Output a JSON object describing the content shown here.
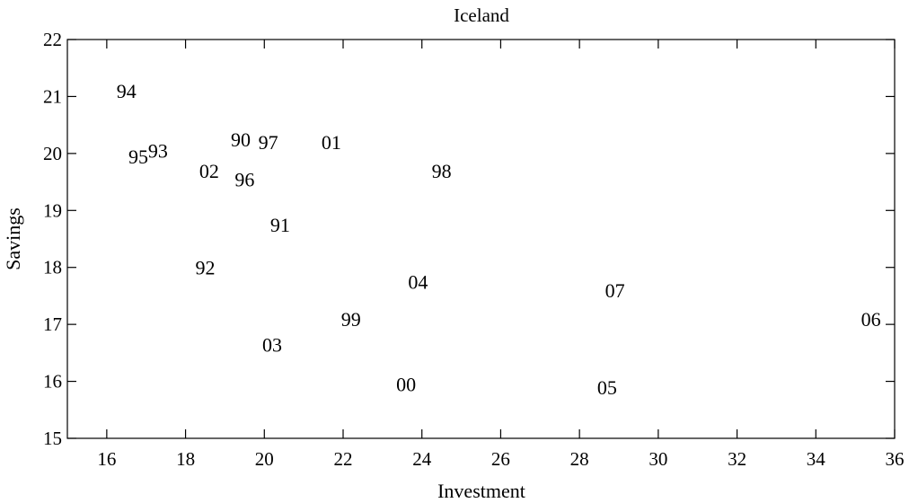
{
  "chart_data": {
    "type": "scatter",
    "title": "Iceland",
    "xlabel": "Investment",
    "ylabel": "Savings",
    "xlim": [
      15,
      36
    ],
    "ylim": [
      15,
      22
    ],
    "xticks": [
      "16",
      "18",
      "20",
      "22",
      "24",
      "26",
      "28",
      "30",
      "32",
      "34",
      "36"
    ],
    "yticks": [
      "15",
      "16",
      "17",
      "18",
      "19",
      "20",
      "21",
      "22"
    ],
    "grid": false,
    "marker": "year-label",
    "points": [
      {
        "label": "94",
        "x": 16.5,
        "y": 21.1
      },
      {
        "label": "95",
        "x": 16.8,
        "y": 19.95
      },
      {
        "label": "93",
        "x": 17.3,
        "y": 20.05
      },
      {
        "label": "90",
        "x": 19.4,
        "y": 20.25
      },
      {
        "label": "97",
        "x": 20.1,
        "y": 20.2
      },
      {
        "label": "01",
        "x": 21.7,
        "y": 20.2
      },
      {
        "label": "02",
        "x": 18.6,
        "y": 19.7
      },
      {
        "label": "96",
        "x": 19.5,
        "y": 19.55
      },
      {
        "label": "98",
        "x": 24.5,
        "y": 19.7
      },
      {
        "label": "91",
        "x": 20.4,
        "y": 18.75
      },
      {
        "label": "92",
        "x": 18.5,
        "y": 18.0
      },
      {
        "label": "04",
        "x": 23.9,
        "y": 17.75
      },
      {
        "label": "07",
        "x": 28.9,
        "y": 17.6
      },
      {
        "label": "06",
        "x": 35.4,
        "y": 17.1
      },
      {
        "label": "99",
        "x": 22.2,
        "y": 17.1
      },
      {
        "label": "03",
        "x": 20.2,
        "y": 16.65
      },
      {
        "label": "00",
        "x": 23.6,
        "y": 15.95
      },
      {
        "label": "05",
        "x": 28.7,
        "y": 15.9
      }
    ]
  }
}
